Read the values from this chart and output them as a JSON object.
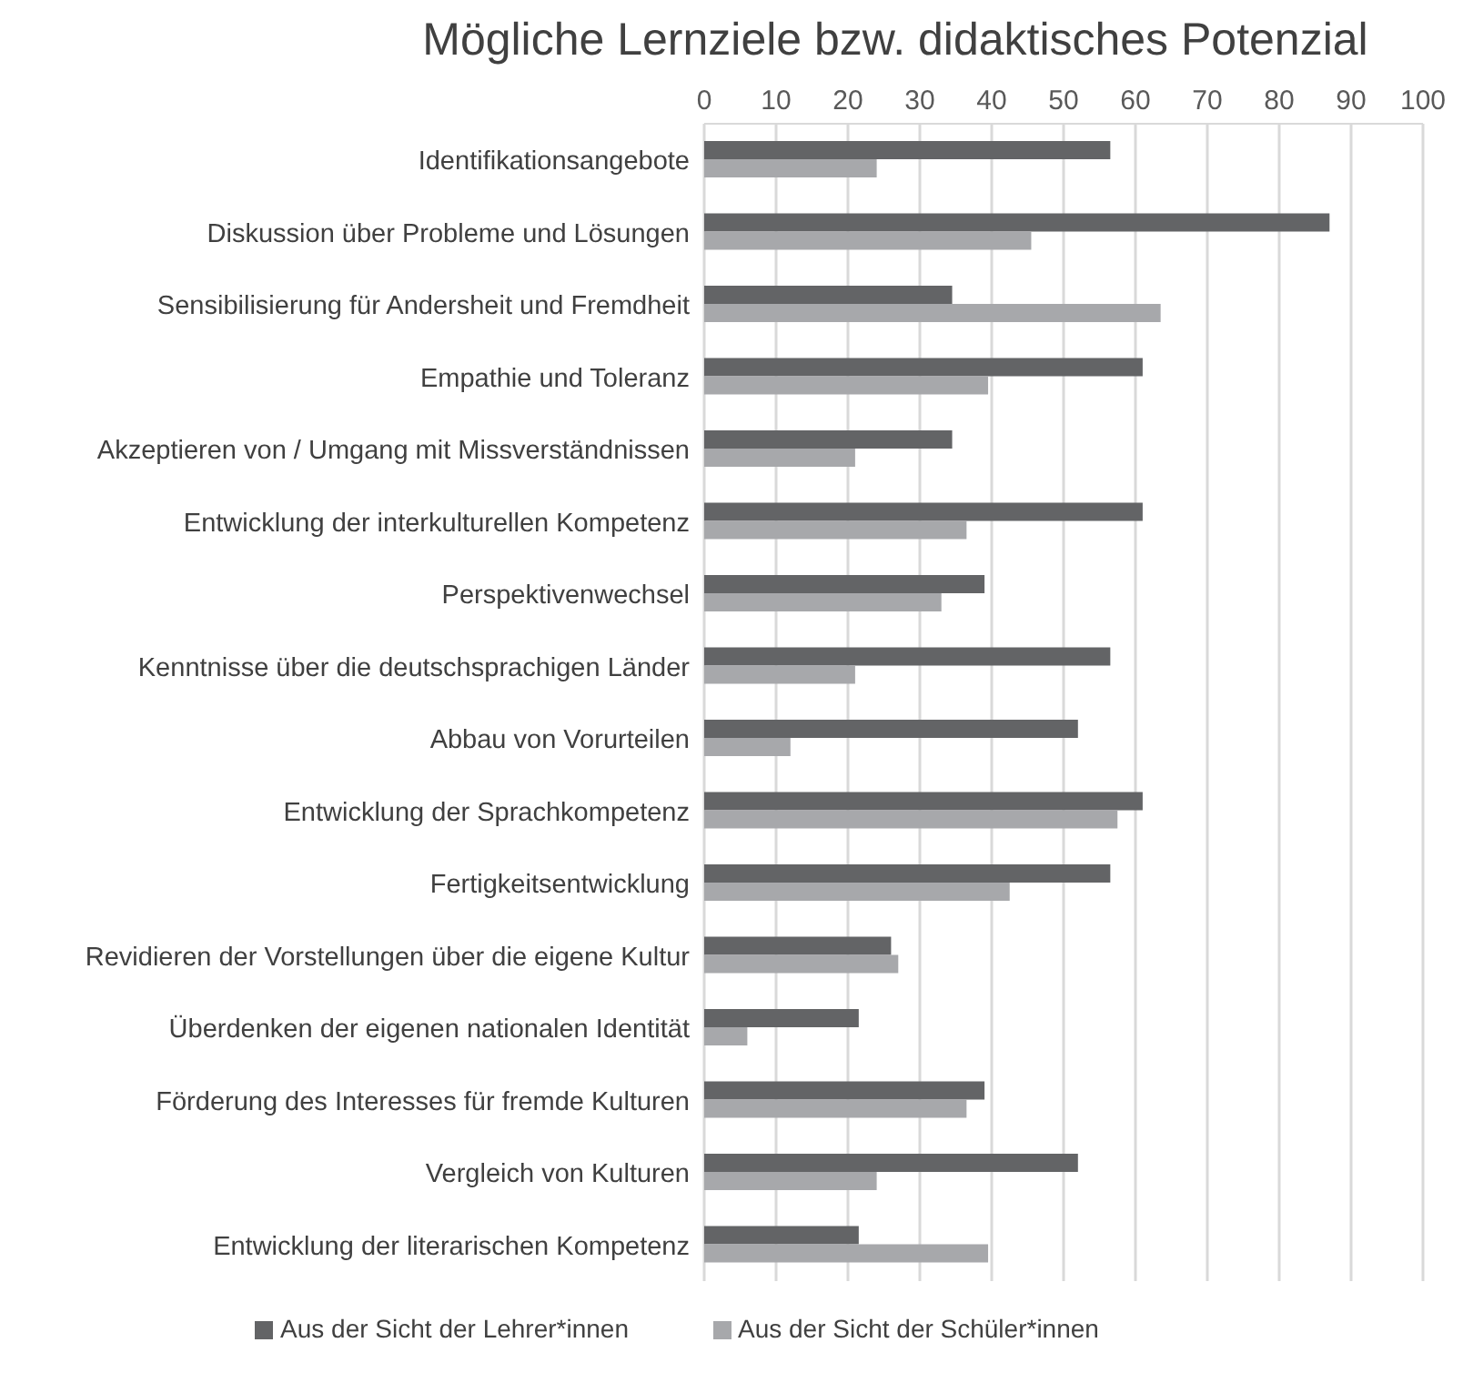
{
  "chart_data": {
    "type": "bar",
    "orientation": "horizontal",
    "title": "Mögliche Lernziele bzw. didaktisches Potenzial",
    "categories": [
      "Identifikationsangebote",
      "Diskussion über Probleme und Lösungen",
      "Sensibilisierung für Andersheit und Fremdheit",
      "Empathie und Toleranz",
      "Akzeptieren von / Umgang mit Missverständnissen",
      "Entwicklung der interkulturellen Kompetenz",
      "Perspektivenwechsel",
      "Kenntnisse über die deutschsprachigen Länder",
      "Abbau von Vorurteilen",
      "Entwicklung der Sprachkompetenz",
      "Fertigkeitsentwicklung",
      "Revidieren der Vorstellungen über die eigene Kultur",
      "Überdenken der eigenen nationalen Identität",
      "Förderung des Interesses für fremde Kulturen",
      "Vergleich von Kulturen",
      "Entwicklung der literarischen Kompetenz"
    ],
    "series": [
      {
        "name": "Aus der Sicht der Lehrer*innen",
        "color": "#636466",
        "values": [
          56.5,
          87,
          34.5,
          61,
          34.5,
          61,
          39,
          56.5,
          52,
          61,
          56.5,
          26,
          21.5,
          39,
          52,
          21.5
        ]
      },
      {
        "name": "Aus der Sicht der Schüler*innen",
        "color": "#a7a8ab",
        "values": [
          24,
          45.5,
          63.5,
          39.5,
          21,
          36.5,
          33,
          21,
          12,
          57.5,
          42.5,
          27,
          6,
          36.5,
          24,
          39.5
        ]
      }
    ],
    "xlim": [
      0,
      100
    ],
    "xticks": [
      0,
      10,
      20,
      30,
      40,
      50,
      60,
      70,
      80,
      90,
      100
    ],
    "grid": "x",
    "legend": "bottom"
  }
}
